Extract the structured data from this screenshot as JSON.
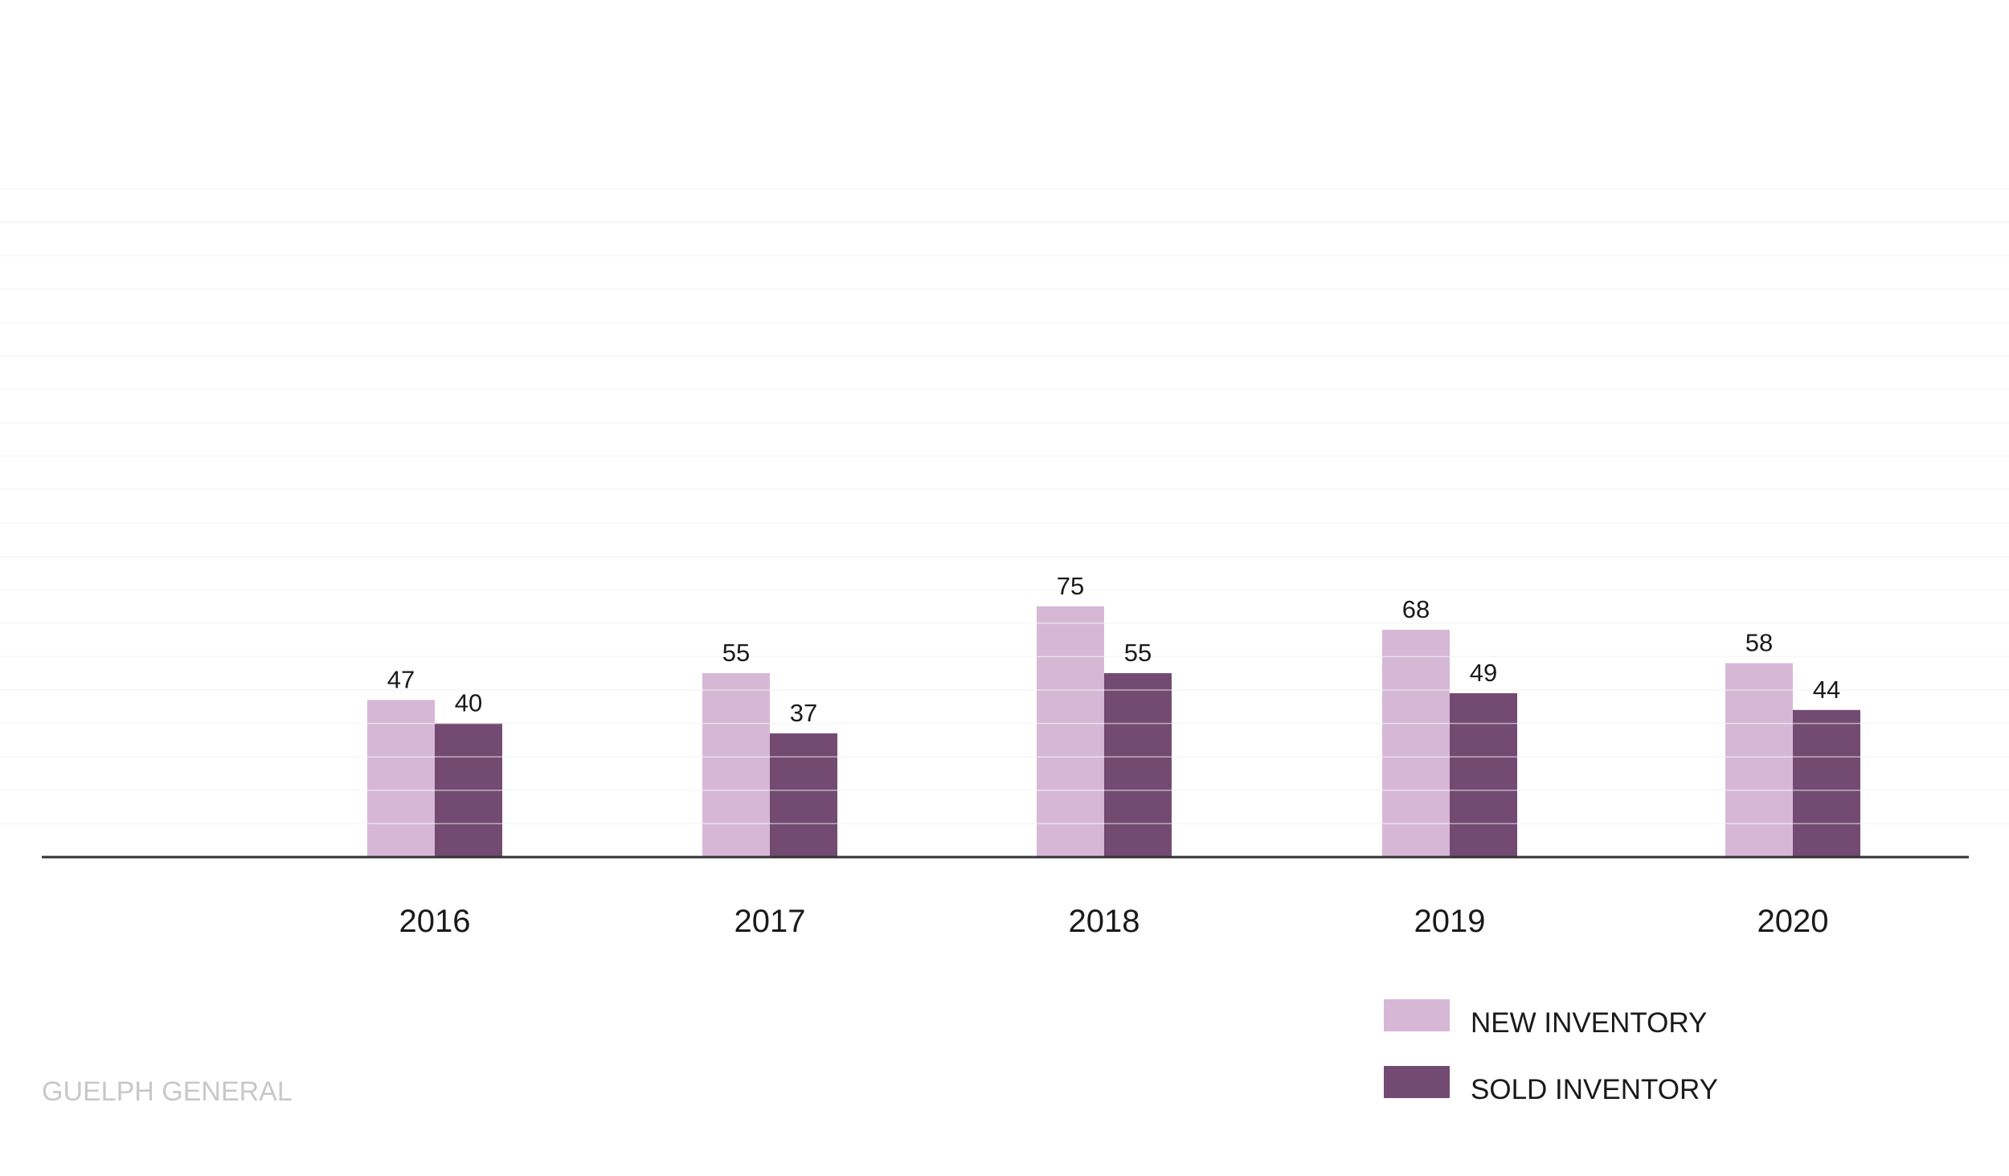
{
  "colors": {
    "new_inventory": "#d6b8d6",
    "sold_inventory": "#734a72",
    "axis": "#333333",
    "grid": "#eeeeee",
    "source_text": "#c8c8c8"
  },
  "source": "GUELPH GENERAL",
  "legend": {
    "placement": "bottom-right",
    "items": [
      {
        "label": "NEW INVENTORY",
        "color": "#d6b8d6"
      },
      {
        "label": "SOLD INVENTORY",
        "color": "#734a72"
      }
    ]
  },
  "chart_data": {
    "type": "bar",
    "title": "",
    "xlabel": "",
    "ylabel": "",
    "categories": [
      "2016",
      "2017",
      "2018",
      "2019",
      "2020"
    ],
    "series": [
      {
        "name": "NEW INVENTORY",
        "values": [
          47,
          55,
          75,
          68,
          58
        ]
      },
      {
        "name": "SOLD INVENTORY",
        "values": [
          40,
          37,
          55,
          49,
          44
        ]
      }
    ],
    "ylim": [
      0,
      200
    ],
    "grid": true,
    "data_labels": true
  }
}
